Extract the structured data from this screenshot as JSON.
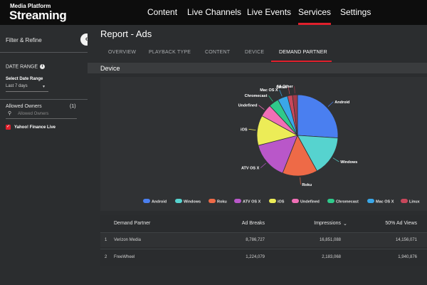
{
  "header": {
    "brand_small": "Media Platform",
    "brand_big": "Streaming",
    "nav": [
      "Content",
      "Live Channels",
      "Live Events",
      "Services",
      "Settings"
    ],
    "active_nav": "Services"
  },
  "sidebar": {
    "title": "Filter & Refine",
    "date_range_label": "DATE RANGE",
    "select_date_range_label": "Select Date Range",
    "date_range_value": "Last 7 days",
    "allowed_owners_label": "Allowed Owners",
    "allowed_owners_count": "(1)",
    "owners_search_placeholder": "Allowed Owners",
    "owner_item": "Yahoo! Finance Live"
  },
  "page": {
    "title": "Report - Ads",
    "tabs": [
      "OVERVIEW",
      "PLAYBACK TYPE",
      "CONTENT",
      "DEVICE",
      "DEMAND PARTNER"
    ],
    "active_tab": "DEMAND PARTNER",
    "section_title": "Device"
  },
  "chart_data": {
    "type": "pie",
    "categories": [
      "Android",
      "Windows",
      "Roku",
      "ATV OS X",
      "iOS",
      "Undefined",
      "Chromecast",
      "Mac OS X",
      "Linux",
      "All Other"
    ],
    "values": [
      26,
      16,
      14,
      15,
      12,
      5,
      4,
      4,
      2,
      2
    ],
    "colors": [
      "#4a7ff0",
      "#56d3cf",
      "#ee6a47",
      "#b957c9",
      "#ecec57",
      "#f06fb6",
      "#2fc98b",
      "#3aa7e8",
      "#c8475b",
      "#a33a4a"
    ],
    "legend": [
      "Android",
      "Windows",
      "Roku",
      "ATV OS X",
      "iOS",
      "Undefined",
      "Chromecast",
      "Mac OS X",
      "Linux"
    ],
    "legend_placement": "bottom"
  },
  "table": {
    "headers": [
      "Demand Partner",
      "Ad Breaks",
      "Impressions",
      "50% Ad Views"
    ],
    "rows": [
      [
        "1",
        "Verizon Media",
        "8,786,727",
        "16,851,088",
        "14,156,071"
      ],
      [
        "2",
        "FreeWheel",
        "1,224,079",
        "2,183,068",
        "1,940,876"
      ]
    ]
  }
}
